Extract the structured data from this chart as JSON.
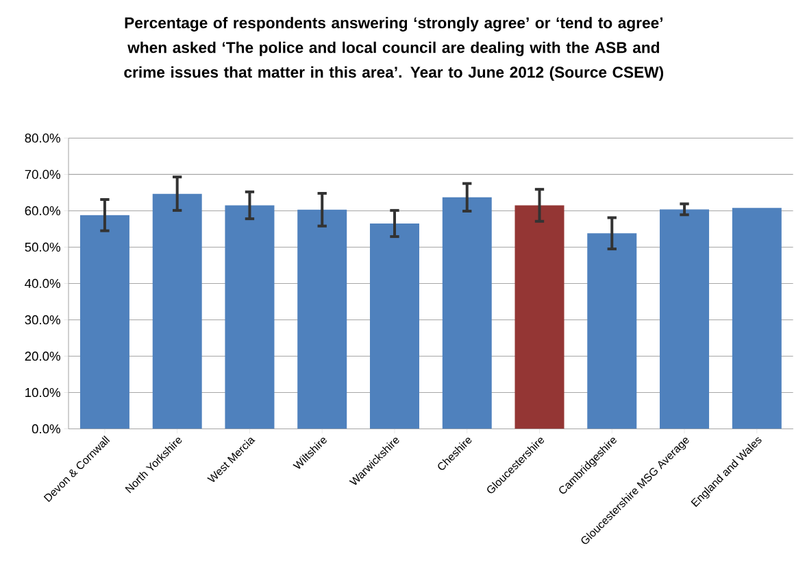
{
  "chart_data": {
    "type": "bar",
    "title": "Percentage of respondents answering ‘strongly agree’ or ‘tend to agree’ when asked ‘The police and local council are dealing with the ASB and crime issues that matter in this area’. Year to June 2012 (Source CSEW)",
    "categories": [
      "Devon & Cornwall",
      "North Yorkshire",
      "West Mercia",
      "Wiltshire",
      "Warwickshire",
      "Cheshire",
      "Gloucestershire",
      "Cambridgeshire",
      "Gloucestershire MSG Average",
      "England and Wales"
    ],
    "values": [
      58.8,
      64.7,
      61.5,
      60.3,
      56.5,
      63.7,
      61.5,
      53.8,
      60.4,
      60.8
    ],
    "errors": [
      4.3,
      4.6,
      3.7,
      4.5,
      3.6,
      3.8,
      4.4,
      4.3,
      1.5,
      null
    ],
    "colors": [
      "#4f81bd",
      "#4f81bd",
      "#4f81bd",
      "#4f81bd",
      "#4f81bd",
      "#4f81bd",
      "#943634",
      "#4f81bd",
      "#4f81bd",
      "#4f81bd"
    ],
    "ylim": [
      0,
      80
    ],
    "yticks": [
      {
        "value": 0,
        "label": "0.0%"
      },
      {
        "value": 10,
        "label": "10.0%"
      },
      {
        "value": 20,
        "label": "20.0%"
      },
      {
        "value": 30,
        "label": "30.0%"
      },
      {
        "value": 40,
        "label": "40.0%"
      },
      {
        "value": 50,
        "label": "50.0%"
      },
      {
        "value": 60,
        "label": "60.0%"
      },
      {
        "value": 70,
        "label": "70.0%"
      },
      {
        "value": 80,
        "label": "80.0%"
      }
    ],
    "grid": "y"
  }
}
